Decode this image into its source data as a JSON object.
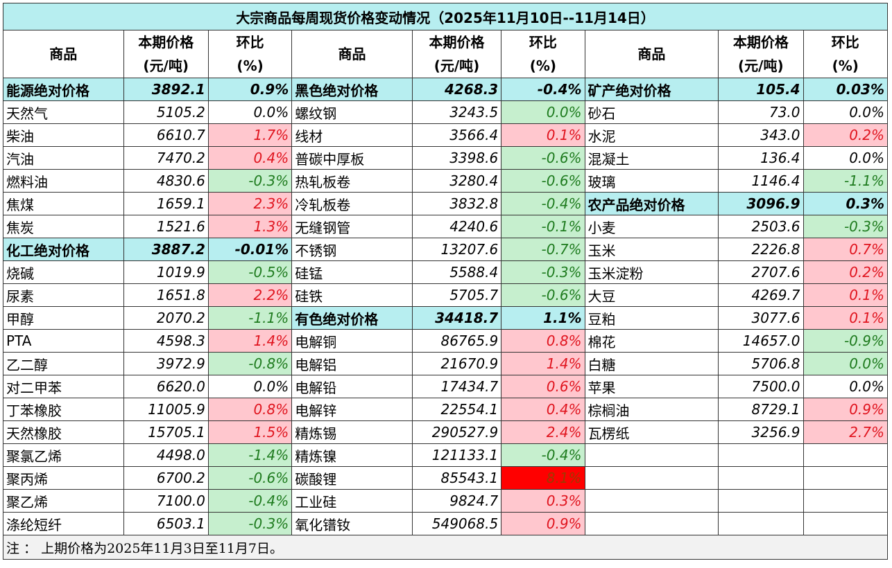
{
  "title": "大宗商品每周现货价格变动情况（2025年11月10日--11月14日）",
  "groups": [
    {
      "header_name": "商品",
      "header_price": [
        "本期价格",
        "(元/吨)"
      ],
      "header_change": [
        "环比",
        "(%)"
      ],
      "rows": [
        {
          "name": "能源绝对价格",
          "price": "3892.1",
          "change": "0.9%",
          "fill": "#b7eef0",
          "bold": true
        },
        {
          "name": "天然气",
          "price": "5105.2",
          "change": "0.0%"
        },
        {
          "name": "柴油",
          "price": "6610.7",
          "change": "1.7%",
          "change_fill": "#ffc7ce",
          "change_color": "#e0141e"
        },
        {
          "name": "汽油",
          "price": "7470.2",
          "change": "0.4%",
          "change_fill": "#ffc7ce",
          "change_color": "#e0141e"
        },
        {
          "name": "燃料油",
          "price": "4830.6",
          "change": "-0.3%",
          "change_fill": "#c6efce",
          "change_color": "#1e7b1e"
        },
        {
          "name": "焦煤",
          "price": "1659.1",
          "change": "2.3%",
          "change_fill": "#ffc7ce",
          "change_color": "#e0141e"
        },
        {
          "name": "焦炭",
          "price": "1521.6",
          "change": "1.3%",
          "change_fill": "#ffc7ce",
          "change_color": "#e0141e"
        },
        {
          "name": "化工绝对价格",
          "price": "3887.2",
          "change": "-0.01%",
          "fill": "#b7eef0",
          "bold": true
        },
        {
          "name": "烧碱",
          "price": "1019.9",
          "change": "-0.5%",
          "change_fill": "#c6efce",
          "change_color": "#1e7b1e"
        },
        {
          "name": "尿素",
          "price": "1651.8",
          "change": "2.2%",
          "change_fill": "#ffc7ce",
          "change_color": "#e0141e"
        },
        {
          "name": "甲醇",
          "price": "2070.2",
          "change": "-1.1%",
          "change_fill": "#c6efce",
          "change_color": "#1e7b1e"
        },
        {
          "name": "PTA",
          "price": "4598.3",
          "change": "1.4%",
          "change_fill": "#ffc7ce",
          "change_color": "#e0141e"
        },
        {
          "name": "乙二醇",
          "price": "3972.9",
          "change": "-0.8%",
          "change_fill": "#c6efce",
          "change_color": "#1e7b1e"
        },
        {
          "name": "对二甲苯",
          "price": "6620.0",
          "change": "0.0%"
        },
        {
          "name": "丁苯橡胶",
          "price": "11005.9",
          "change": "0.8%",
          "change_fill": "#ffc7ce",
          "change_color": "#e0141e"
        },
        {
          "name": "天然橡胶",
          "price": "15705.1",
          "change": "1.5%",
          "change_fill": "#ffc7ce",
          "change_color": "#e0141e"
        },
        {
          "name": "聚氯乙烯",
          "price": "4498.0",
          "change": "-1.4%",
          "change_fill": "#c6efce",
          "change_color": "#1e7b1e"
        },
        {
          "name": "聚丙烯",
          "price": "6700.2",
          "change": "-0.6%",
          "change_fill": "#c6efce",
          "change_color": "#1e7b1e"
        },
        {
          "name": "聚乙烯",
          "price": "7100.0",
          "change": "-0.4%",
          "change_fill": "#c6efce",
          "change_color": "#1e7b1e"
        },
        {
          "name": "涤纶短纤",
          "price": "6503.1",
          "change": "-0.3%",
          "change_fill": "#c6efce",
          "change_color": "#1e7b1e"
        }
      ]
    },
    {
      "header_name": "商品",
      "header_price": [
        "本期价格",
        "(元/吨)"
      ],
      "header_change": [
        "环比",
        "(%)"
      ],
      "rows": [
        {
          "name": "黑色绝对价格",
          "price": "4268.3",
          "change": "-0.4%",
          "fill": "#b7eef0",
          "bold": true
        },
        {
          "name": "螺纹钢",
          "price": "3243.5",
          "change": "0.0%",
          "change_fill": "#c6efce",
          "change_color": "#1e7b1e"
        },
        {
          "name": "线材",
          "price": "3566.4",
          "change": "0.1%",
          "change_fill": "#ffc7ce",
          "change_color": "#e0141e"
        },
        {
          "name": "普碳中厚板",
          "price": "3398.6",
          "change": "-0.6%",
          "change_fill": "#c6efce",
          "change_color": "#1e7b1e"
        },
        {
          "name": "热轧板卷",
          "price": "3280.4",
          "change": "-0.6%",
          "change_fill": "#c6efce",
          "change_color": "#1e7b1e"
        },
        {
          "name": "冷轧板卷",
          "price": "3832.8",
          "change": "-0.4%",
          "change_fill": "#c6efce",
          "change_color": "#1e7b1e"
        },
        {
          "name": "无缝钢管",
          "price": "4240.6",
          "change": "-0.1%",
          "change_fill": "#c6efce",
          "change_color": "#1e7b1e"
        },
        {
          "name": "不锈钢",
          "price": "13207.6",
          "change": "-0.7%",
          "change_fill": "#c6efce",
          "change_color": "#1e7b1e"
        },
        {
          "name": "硅锰",
          "price": "5588.4",
          "change": "-0.3%",
          "change_fill": "#c6efce",
          "change_color": "#1e7b1e"
        },
        {
          "name": "硅铁",
          "price": "5705.7",
          "change": "-0.6%",
          "change_fill": "#c6efce",
          "change_color": "#1e7b1e"
        },
        {
          "name": "有色绝对价格",
          "price": "34418.7",
          "change": "1.1%",
          "fill": "#b7eef0",
          "bold": true
        },
        {
          "name": "电解铜",
          "price": "86765.9",
          "change": "0.8%",
          "change_fill": "#ffc7ce",
          "change_color": "#e0141e"
        },
        {
          "name": "电解铝",
          "price": "21670.9",
          "change": "1.4%",
          "change_fill": "#ffc7ce",
          "change_color": "#e0141e"
        },
        {
          "name": "电解铅",
          "price": "17434.7",
          "change": "0.6%",
          "change_fill": "#ffc7ce",
          "change_color": "#e0141e"
        },
        {
          "name": "电解锌",
          "price": "22554.1",
          "change": "0.4%",
          "change_fill": "#ffc7ce",
          "change_color": "#e0141e"
        },
        {
          "name": "精炼锡",
          "price": "290527.9",
          "change": "2.4%",
          "change_fill": "#ffc7ce",
          "change_color": "#e0141e"
        },
        {
          "name": "精炼镍",
          "price": "121133.1",
          "change": "-0.4%",
          "change_fill": "#c6efce",
          "change_color": "#1e7b1e"
        },
        {
          "name": "碳酸锂",
          "price": "85543.1",
          "change": "8.1%",
          "change_fill": "#ff0000",
          "change_color": "#9c3a00"
        },
        {
          "name": "工业硅",
          "price": "9824.7",
          "change": "0.3%",
          "change_fill": "#ffc7ce",
          "change_color": "#e0141e"
        },
        {
          "name": "氧化镨钕",
          "price": "549068.5",
          "change": "0.9%",
          "change_fill": "#ffc7ce",
          "change_color": "#e0141e"
        }
      ]
    },
    {
      "header_name": "商品",
      "header_price": [
        "本期价格",
        "(元/吨)"
      ],
      "header_change": [
        "环比",
        "(%)"
      ],
      "rows": [
        {
          "name": "矿产绝对价格",
          "price": "105.4",
          "change": "0.03%",
          "fill": "#b7eef0",
          "bold": true
        },
        {
          "name": "砂石",
          "price": "73.0",
          "change": "0.0%"
        },
        {
          "name": "水泥",
          "price": "343.0",
          "change": "0.2%",
          "change_fill": "#ffc7ce",
          "change_color": "#e0141e"
        },
        {
          "name": "混凝土",
          "price": "136.4",
          "change": "0.0%"
        },
        {
          "name": "玻璃",
          "price": "1146.4",
          "change": "-1.1%",
          "change_fill": "#c6efce",
          "change_color": "#1e7b1e"
        },
        {
          "name": "农产品绝对价格",
          "price": "3096.9",
          "change": "0.3%",
          "fill": "#b7eef0",
          "bold": true
        },
        {
          "name": "小麦",
          "price": "2503.6",
          "change": "-0.3%",
          "change_fill": "#c6efce",
          "change_color": "#1e7b1e"
        },
        {
          "name": "玉米",
          "price": "2226.8",
          "change": "0.7%",
          "change_fill": "#ffc7ce",
          "change_color": "#e0141e"
        },
        {
          "name": "玉米淀粉",
          "price": "2707.6",
          "change": "0.2%",
          "change_fill": "#ffc7ce",
          "change_color": "#e0141e"
        },
        {
          "name": "大豆",
          "price": "4269.7",
          "change": "0.1%",
          "change_fill": "#ffc7ce",
          "change_color": "#e0141e"
        },
        {
          "name": "豆粕",
          "price": "3077.6",
          "change": "0.1%",
          "change_fill": "#ffc7ce",
          "change_color": "#e0141e"
        },
        {
          "name": "棉花",
          "price": "14657.0",
          "change": "-0.9%",
          "change_fill": "#c6efce",
          "change_color": "#1e7b1e"
        },
        {
          "name": "白糖",
          "price": "5706.8",
          "change": "0.0%",
          "change_fill": "#c6efce",
          "change_color": "#1e7b1e"
        },
        {
          "name": "苹果",
          "price": "7500.0",
          "change": "0.0%"
        },
        {
          "name": "棕榈油",
          "price": "8729.1",
          "change": "0.9%",
          "change_fill": "#ffc7ce",
          "change_color": "#e0141e"
        },
        {
          "name": "瓦楞纸",
          "price": "3256.9",
          "change": "2.7%",
          "change_fill": "#ffc7ce",
          "change_color": "#e0141e"
        }
      ]
    }
  ],
  "note": "注 ： 上期价格为2025年11月3日至11月7日。"
}
